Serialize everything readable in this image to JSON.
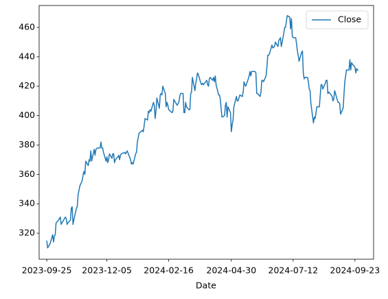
{
  "chart_data": {
    "type": "line",
    "xlabel": "Date",
    "x": [
      "2023-09-25",
      "2023-09-26",
      "2023-09-27",
      "2023-09-28",
      "2023-09-29",
      "2023-10-02",
      "2023-10-03",
      "2023-10-04",
      "2023-10-05",
      "2023-10-06",
      "2023-10-09",
      "2023-10-10",
      "2023-10-11",
      "2023-10-12",
      "2023-10-13",
      "2023-10-16",
      "2023-10-17",
      "2023-10-18",
      "2023-10-19",
      "2023-10-20",
      "2023-10-23",
      "2023-10-24",
      "2023-10-25",
      "2023-10-26",
      "2023-10-27",
      "2023-10-30",
      "2023-10-31",
      "2023-11-01",
      "2023-11-02",
      "2023-11-03",
      "2023-11-06",
      "2023-11-07",
      "2023-11-08",
      "2023-11-09",
      "2023-11-10",
      "2023-11-13",
      "2023-11-14",
      "2023-11-15",
      "2023-11-16",
      "2023-11-17",
      "2023-11-20",
      "2023-11-21",
      "2023-11-22",
      "2023-11-24",
      "2023-11-27",
      "2023-11-28",
      "2023-11-29",
      "2023-11-30",
      "2023-12-01",
      "2023-12-04",
      "2023-12-05",
      "2023-12-06",
      "2023-12-07",
      "2023-12-08",
      "2023-12-11",
      "2023-12-12",
      "2023-12-13",
      "2023-12-14",
      "2023-12-15",
      "2023-12-18",
      "2023-12-19",
      "2023-12-20",
      "2023-12-21",
      "2023-12-22",
      "2023-12-26",
      "2023-12-27",
      "2023-12-28",
      "2023-12-29",
      "2024-01-02",
      "2024-01-03",
      "2024-01-04",
      "2024-01-05",
      "2024-01-08",
      "2024-01-09",
      "2024-01-10",
      "2024-01-11",
      "2024-01-12",
      "2024-01-16",
      "2024-01-17",
      "2024-01-18",
      "2024-01-19",
      "2024-01-22",
      "2024-01-23",
      "2024-01-24",
      "2024-01-25",
      "2024-01-26",
      "2024-01-29",
      "2024-01-30",
      "2024-01-31",
      "2024-02-01",
      "2024-02-02",
      "2024-02-05",
      "2024-02-06",
      "2024-02-07",
      "2024-02-08",
      "2024-02-09",
      "2024-02-12",
      "2024-02-13",
      "2024-02-14",
      "2024-02-15",
      "2024-02-16",
      "2024-02-20",
      "2024-02-21",
      "2024-02-22",
      "2024-02-23",
      "2024-02-26",
      "2024-02-27",
      "2024-02-28",
      "2024-02-29",
      "2024-03-01",
      "2024-03-04",
      "2024-03-05",
      "2024-03-06",
      "2024-03-07",
      "2024-03-08",
      "2024-03-11",
      "2024-03-12",
      "2024-03-13",
      "2024-03-14",
      "2024-03-15",
      "2024-03-18",
      "2024-03-19",
      "2024-03-20",
      "2024-03-21",
      "2024-03-22",
      "2024-03-25",
      "2024-03-26",
      "2024-03-27",
      "2024-03-28",
      "2024-04-01",
      "2024-04-02",
      "2024-04-03",
      "2024-04-04",
      "2024-04-05",
      "2024-04-08",
      "2024-04-09",
      "2024-04-10",
      "2024-04-11",
      "2024-04-12",
      "2024-04-15",
      "2024-04-16",
      "2024-04-17",
      "2024-04-18",
      "2024-04-19",
      "2024-04-22",
      "2024-04-23",
      "2024-04-24",
      "2024-04-25",
      "2024-04-26",
      "2024-04-29",
      "2024-04-30",
      "2024-05-01",
      "2024-05-02",
      "2024-05-03",
      "2024-05-06",
      "2024-05-07",
      "2024-05-08",
      "2024-05-09",
      "2024-05-10",
      "2024-05-13",
      "2024-05-14",
      "2024-05-15",
      "2024-05-16",
      "2024-05-17",
      "2024-05-20",
      "2024-05-21",
      "2024-05-22",
      "2024-05-23",
      "2024-05-24",
      "2024-05-28",
      "2024-05-29",
      "2024-05-30",
      "2024-05-31",
      "2024-06-03",
      "2024-06-04",
      "2024-06-05",
      "2024-06-06",
      "2024-06-07",
      "2024-06-10",
      "2024-06-11",
      "2024-06-12",
      "2024-06-13",
      "2024-06-14",
      "2024-06-17",
      "2024-06-18",
      "2024-06-20",
      "2024-06-21",
      "2024-06-24",
      "2024-06-25",
      "2024-06-26",
      "2024-06-27",
      "2024-06-28",
      "2024-07-01",
      "2024-07-02",
      "2024-07-03",
      "2024-07-05",
      "2024-07-08",
      "2024-07-09",
      "2024-07-10",
      "2024-07-11",
      "2024-07-12",
      "2024-07-15",
      "2024-07-16",
      "2024-07-17",
      "2024-07-18",
      "2024-07-19",
      "2024-07-22",
      "2024-07-23",
      "2024-07-24",
      "2024-07-25",
      "2024-07-26",
      "2024-07-29",
      "2024-07-30",
      "2024-07-31",
      "2024-08-01",
      "2024-08-02",
      "2024-08-05",
      "2024-08-06",
      "2024-08-07",
      "2024-08-08",
      "2024-08-09",
      "2024-08-12",
      "2024-08-13",
      "2024-08-14",
      "2024-08-15",
      "2024-08-16",
      "2024-08-19",
      "2024-08-20",
      "2024-08-21",
      "2024-08-22",
      "2024-08-23",
      "2024-08-26",
      "2024-08-27",
      "2024-08-28",
      "2024-08-29",
      "2024-08-30",
      "2024-09-03",
      "2024-09-04",
      "2024-09-05",
      "2024-09-06",
      "2024-09-09",
      "2024-09-10",
      "2024-09-11",
      "2024-09-12",
      "2024-09-13",
      "2024-09-16",
      "2024-09-17",
      "2024-09-18",
      "2024-09-19",
      "2024-09-20",
      "2024-09-23",
      "2024-09-24",
      "2024-09-25",
      "2024-09-26",
      "2024-09-27"
    ],
    "series": [
      {
        "name": "Close",
        "color": "#1f77b4",
        "values": [
          315,
          310,
          311,
          312,
          313,
          319,
          314,
          318,
          319,
          327,
          329,
          330,
          331,
          326,
          327,
          330,
          331,
          330,
          326,
          327,
          329,
          337,
          338,
          326,
          329,
          337,
          338,
          346,
          349,
          352,
          356,
          360,
          362,
          360,
          369,
          366,
          370,
          369,
          376,
          369,
          377,
          373,
          377,
          378,
          378,
          382,
          378,
          378,
          375,
          369,
          372,
          368,
          370,
          374,
          371,
          374,
          374,
          368,
          370,
          372,
          373,
          370,
          373,
          374,
          375,
          374,
          375,
          376,
          370,
          367,
          368,
          367,
          374,
          375,
          382,
          385,
          388,
          390,
          389,
          393,
          398,
          397,
          403,
          402,
          404,
          403,
          409,
          407,
          398,
          403,
          412,
          405,
          414,
          415,
          414,
          420,
          415,
          406,
          409,
          407,
          404,
          402,
          403,
          411,
          410,
          407,
          408,
          409,
          413,
          415,
          415,
          402,
          402,
          409,
          406,
          404,
          404,
          415,
          416,
          426,
          417,
          422,
          425,
          429,
          428,
          422,
          421,
          422,
          421,
          424,
          421,
          420,
          425,
          426,
          424,
          426,
          423,
          427,
          421,
          414,
          414,
          411,
          404,
          399,
          400,
          407,
          409,
          399,
          406,
          402,
          389,
          394,
          397,
          406,
          413,
          410,
          410,
          412,
          414,
          413,
          416,
          423,
          421,
          420,
          425,
          427,
          430,
          427,
          430,
          430,
          429,
          415,
          415,
          413,
          416,
          424,
          424,
          423,
          427,
          433,
          441,
          441,
          442,
          448,
          446,
          447,
          450,
          447,
          451,
          452,
          453,
          447,
          456,
          460,
          460,
          468,
          467,
          459,
          466,
          454,
          453,
          453,
          449,
          444,
          441,
          437,
          443,
          444,
          429,
          425,
          426,
          426,
          423,
          418,
          417,
          408,
          395,
          399,
          398,
          402,
          406,
          406,
          414,
          421,
          421,
          418,
          422,
          424,
          424,
          415,
          416,
          414,
          413,
          410,
          411,
          417,
          409,
          409,
          408,
          401,
          405,
          414,
          423,
          427,
          431,
          431,
          438,
          431,
          436,
          435,
          433,
          429,
          432,
          431,
          431
        ]
      }
    ],
    "xlim": [
      "2023-09-16",
      "2024-10-15"
    ],
    "xticks": [
      "2023-09-25",
      "2023-12-05",
      "2024-02-16",
      "2024-04-30",
      "2024-07-12",
      "2024-09-23"
    ],
    "ylim": [
      302.3,
      474.9
    ],
    "yticks": [
      320,
      340,
      360,
      380,
      400,
      420,
      440,
      460
    ],
    "grid": false,
    "legend": "upper right"
  }
}
